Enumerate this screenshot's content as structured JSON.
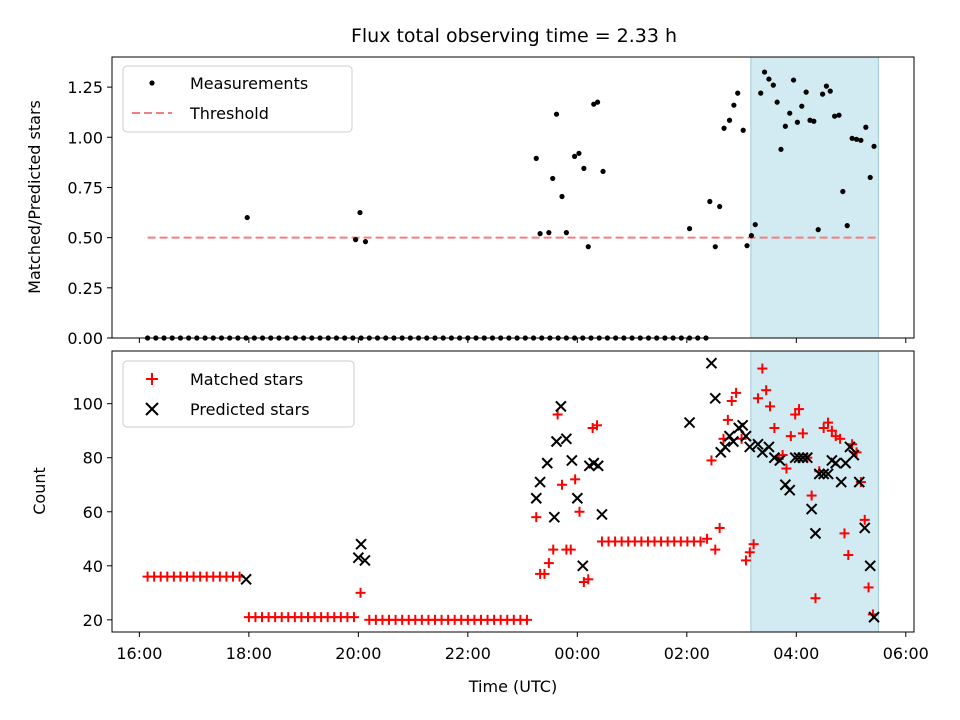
{
  "title": "Flux total observing time = 2.33 h",
  "xlabel": "Time (UTC)",
  "x_tick_labels": [
    "16:00",
    "18:00",
    "20:00",
    "22:00",
    "00:00",
    "02:00",
    "04:00",
    "06:00"
  ],
  "colors": {
    "measure": "#000000",
    "threshold": "#f08080",
    "matched": "#ff0000",
    "predicted": "#000000",
    "span": "#add8e6"
  },
  "chart_data": [
    {
      "type": "scatter",
      "ylabel": "Matched/Predicted stars",
      "x_unit": "hours since 16:00 UTC",
      "xlim": [
        -0.5,
        14.15
      ],
      "ylim": [
        0,
        1.4
      ],
      "y_tick_labels": [
        "0.00",
        "0.25",
        "0.50",
        "0.75",
        "1.00",
        "1.25"
      ],
      "highlight_span": [
        11.17,
        13.5
      ],
      "legend": {
        "placement": "upper-left",
        "measurements": "Measurements",
        "threshold": "Threshold"
      },
      "threshold": {
        "y": 0.5,
        "x": [
          0.15,
          13.5
        ]
      },
      "measurements": [
        [
          0.15,
          0
        ],
        [
          0.3,
          0
        ],
        [
          0.45,
          0
        ],
        [
          0.6,
          0
        ],
        [
          0.75,
          0
        ],
        [
          0.9,
          0
        ],
        [
          1.05,
          0
        ],
        [
          1.2,
          0
        ],
        [
          1.35,
          0
        ],
        [
          1.5,
          0
        ],
        [
          1.65,
          0
        ],
        [
          1.8,
          0
        ],
        [
          1.95,
          0
        ],
        [
          2.1,
          0
        ],
        [
          2.25,
          0
        ],
        [
          2.4,
          0
        ],
        [
          2.55,
          0
        ],
        [
          2.7,
          0
        ],
        [
          2.85,
          0
        ],
        [
          3.0,
          0
        ],
        [
          3.15,
          0
        ],
        [
          3.3,
          0
        ],
        [
          3.45,
          0
        ],
        [
          3.6,
          0
        ],
        [
          3.75,
          0
        ],
        [
          3.9,
          0
        ],
        [
          4.05,
          0
        ],
        [
          4.2,
          0
        ],
        [
          4.35,
          0
        ],
        [
          4.5,
          0
        ],
        [
          4.65,
          0
        ],
        [
          4.8,
          0
        ],
        [
          4.95,
          0
        ],
        [
          5.1,
          0
        ],
        [
          5.25,
          0
        ],
        [
          5.4,
          0
        ],
        [
          5.55,
          0
        ],
        [
          5.7,
          0
        ],
        [
          5.85,
          0
        ],
        [
          6.0,
          0
        ],
        [
          6.15,
          0
        ],
        [
          6.3,
          0
        ],
        [
          6.45,
          0
        ],
        [
          6.6,
          0
        ],
        [
          6.75,
          0
        ],
        [
          6.9,
          0
        ],
        [
          7.05,
          0
        ],
        [
          7.2,
          0
        ],
        [
          7.35,
          0
        ],
        [
          7.5,
          0
        ],
        [
          7.65,
          0
        ],
        [
          7.8,
          0
        ],
        [
          7.95,
          0
        ],
        [
          8.1,
          0
        ],
        [
          8.25,
          0
        ],
        [
          8.4,
          0
        ],
        [
          8.55,
          0
        ],
        [
          8.7,
          0
        ],
        [
          8.85,
          0
        ],
        [
          9.0,
          0
        ],
        [
          9.15,
          0
        ],
        [
          9.3,
          0
        ],
        [
          9.45,
          0
        ],
        [
          9.6,
          0
        ],
        [
          9.75,
          0
        ],
        [
          9.9,
          0
        ],
        [
          10.05,
          0
        ],
        [
          10.2,
          0
        ],
        [
          10.35,
          0
        ],
        [
          1.97,
          0.6
        ],
        [
          3.95,
          0.49
        ],
        [
          4.03,
          0.625
        ],
        [
          4.13,
          0.48
        ],
        [
          7.25,
          0.895
        ],
        [
          7.32,
          0.52
        ],
        [
          7.48,
          0.525
        ],
        [
          7.55,
          0.795
        ],
        [
          7.62,
          1.115
        ],
        [
          7.72,
          0.705
        ],
        [
          7.8,
          0.525
        ],
        [
          7.95,
          0.905
        ],
        [
          8.03,
          0.92
        ],
        [
          8.12,
          0.845
        ],
        [
          8.2,
          0.455
        ],
        [
          8.3,
          1.165
        ],
        [
          8.37,
          1.175
        ],
        [
          8.47,
          0.83
        ],
        [
          10.05,
          0.545
        ],
        [
          10.42,
          0.68
        ],
        [
          10.52,
          0.455
        ],
        [
          10.6,
          0.655
        ],
        [
          10.68,
          1.045
        ],
        [
          10.78,
          1.085
        ],
        [
          10.86,
          1.16
        ],
        [
          10.93,
          1.22
        ],
        [
          11.03,
          1.035
        ],
        [
          11.1,
          0.46
        ],
        [
          11.18,
          0.51
        ],
        [
          11.25,
          0.565
        ],
        [
          11.35,
          1.22
        ],
        [
          11.42,
          1.325
        ],
        [
          11.5,
          1.29
        ],
        [
          11.58,
          1.26
        ],
        [
          11.65,
          1.175
        ],
        [
          11.72,
          0.94
        ],
        [
          11.8,
          1.055
        ],
        [
          11.88,
          1.12
        ],
        [
          11.95,
          1.285
        ],
        [
          12.02,
          1.075
        ],
        [
          12.1,
          1.155
        ],
        [
          12.18,
          1.225
        ],
        [
          12.25,
          1.085
        ],
        [
          12.32,
          1.08
        ],
        [
          12.4,
          0.54
        ],
        [
          12.48,
          1.215
        ],
        [
          12.55,
          1.255
        ],
        [
          12.62,
          1.23
        ],
        [
          12.7,
          1.105
        ],
        [
          12.78,
          1.11
        ],
        [
          12.85,
          0.73
        ],
        [
          12.93,
          0.56
        ],
        [
          13.02,
          0.995
        ],
        [
          13.1,
          0.99
        ],
        [
          13.18,
          0.985
        ],
        [
          13.27,
          1.05
        ],
        [
          13.35,
          0.8
        ],
        [
          13.42,
          0.955
        ]
      ]
    },
    {
      "type": "scatter",
      "ylabel": "Count",
      "x_unit": "hours since 16:00 UTC",
      "xlim": [
        -0.5,
        14.15
      ],
      "ylim": [
        15.5,
        119.5
      ],
      "y_tick_labels": [
        "20",
        "40",
        "60",
        "80",
        "100"
      ],
      "highlight_span": [
        11.17,
        13.5
      ],
      "legend": {
        "placement": "upper-left",
        "matched": "Matched stars",
        "predicted": "Predicted stars"
      },
      "matched_stars": [
        [
          0.15,
          36
        ],
        [
          0.27,
          36
        ],
        [
          0.39,
          36
        ],
        [
          0.51,
          36
        ],
        [
          0.63,
          36
        ],
        [
          0.75,
          36
        ],
        [
          0.87,
          36
        ],
        [
          0.99,
          36
        ],
        [
          1.11,
          36
        ],
        [
          1.23,
          36
        ],
        [
          1.35,
          36
        ],
        [
          1.47,
          36
        ],
        [
          1.59,
          36
        ],
        [
          1.71,
          36
        ],
        [
          1.83,
          36
        ],
        [
          2.0,
          21
        ],
        [
          2.12,
          21
        ],
        [
          2.24,
          21
        ],
        [
          2.36,
          21
        ],
        [
          2.48,
          21
        ],
        [
          2.6,
          21
        ],
        [
          2.72,
          21
        ],
        [
          2.84,
          21
        ],
        [
          2.96,
          21
        ],
        [
          3.08,
          21
        ],
        [
          3.2,
          21
        ],
        [
          3.32,
          21
        ],
        [
          3.44,
          21
        ],
        [
          3.56,
          21
        ],
        [
          3.68,
          21
        ],
        [
          3.8,
          21
        ],
        [
          3.92,
          21
        ],
        [
          4.04,
          30
        ],
        [
          4.2,
          20
        ],
        [
          4.32,
          20
        ],
        [
          4.44,
          20
        ],
        [
          4.56,
          20
        ],
        [
          4.68,
          20
        ],
        [
          4.8,
          20
        ],
        [
          4.92,
          20
        ],
        [
          5.04,
          20
        ],
        [
          5.16,
          20
        ],
        [
          5.28,
          20
        ],
        [
          5.4,
          20
        ],
        [
          5.52,
          20
        ],
        [
          5.64,
          20
        ],
        [
          5.76,
          20
        ],
        [
          5.88,
          20
        ],
        [
          6.0,
          20
        ],
        [
          6.12,
          20
        ],
        [
          6.24,
          20
        ],
        [
          6.36,
          20
        ],
        [
          6.48,
          20
        ],
        [
          6.6,
          20
        ],
        [
          6.72,
          20
        ],
        [
          6.84,
          20
        ],
        [
          6.96,
          20
        ],
        [
          7.08,
          20
        ],
        [
          7.25,
          58
        ],
        [
          7.32,
          37
        ],
        [
          7.4,
          37
        ],
        [
          7.48,
          41
        ],
        [
          7.56,
          46
        ],
        [
          7.64,
          96
        ],
        [
          7.72,
          70
        ],
        [
          7.8,
          46
        ],
        [
          7.88,
          46
        ],
        [
          7.96,
          72
        ],
        [
          8.04,
          60
        ],
        [
          8.12,
          34
        ],
        [
          8.2,
          35
        ],
        [
          8.28,
          91
        ],
        [
          8.36,
          92
        ],
        [
          8.45,
          49
        ],
        [
          8.57,
          49
        ],
        [
          8.69,
          49
        ],
        [
          8.81,
          49
        ],
        [
          8.93,
          49
        ],
        [
          9.05,
          49
        ],
        [
          9.17,
          49
        ],
        [
          9.29,
          49
        ],
        [
          9.41,
          49
        ],
        [
          9.53,
          49
        ],
        [
          9.65,
          49
        ],
        [
          9.77,
          49
        ],
        [
          9.89,
          49
        ],
        [
          10.01,
          49
        ],
        [
          10.13,
          49
        ],
        [
          10.25,
          49
        ],
        [
          10.37,
          50
        ],
        [
          10.45,
          79
        ],
        [
          10.52,
          46
        ],
        [
          10.6,
          54
        ],
        [
          10.67,
          87
        ],
        [
          10.75,
          94
        ],
        [
          10.82,
          101
        ],
        [
          10.9,
          104
        ],
        [
          11.0,
          87
        ],
        [
          11.08,
          42
        ],
        [
          11.15,
          45
        ],
        [
          11.22,
          48
        ],
        [
          11.3,
          102
        ],
        [
          11.38,
          113
        ],
        [
          11.45,
          105
        ],
        [
          11.52,
          99
        ],
        [
          11.6,
          91
        ],
        [
          11.68,
          80
        ],
        [
          11.75,
          81
        ],
        [
          11.82,
          76
        ],
        [
          11.9,
          88
        ],
        [
          11.98,
          96
        ],
        [
          12.05,
          98
        ],
        [
          12.12,
          89
        ],
        [
          12.2,
          80
        ],
        [
          12.28,
          66
        ],
        [
          12.35,
          28
        ],
        [
          12.42,
          75
        ],
        [
          12.5,
          91
        ],
        [
          12.58,
          93
        ],
        [
          12.65,
          90
        ],
        [
          12.72,
          88
        ],
        [
          12.8,
          87
        ],
        [
          12.88,
          52
        ],
        [
          12.95,
          44
        ],
        [
          13.02,
          85
        ],
        [
          13.1,
          82
        ],
        [
          13.18,
          71
        ],
        [
          13.25,
          57
        ],
        [
          13.32,
          32
        ],
        [
          13.4,
          22
        ]
      ],
      "predicted_stars": [
        [
          1.95,
          35
        ],
        [
          4.0,
          43
        ],
        [
          4.05,
          48
        ],
        [
          4.12,
          42
        ],
        [
          7.25,
          65
        ],
        [
          7.32,
          71
        ],
        [
          7.45,
          78
        ],
        [
          7.58,
          58
        ],
        [
          7.62,
          86
        ],
        [
          7.7,
          99
        ],
        [
          7.8,
          87
        ],
        [
          7.9,
          79
        ],
        [
          8.0,
          65
        ],
        [
          8.1,
          40
        ],
        [
          8.22,
          77
        ],
        [
          8.3,
          78
        ],
        [
          8.38,
          77
        ],
        [
          8.45,
          59
        ],
        [
          10.05,
          93
        ],
        [
          10.45,
          115
        ],
        [
          10.52,
          102
        ],
        [
          10.62,
          82
        ],
        [
          10.7,
          84
        ],
        [
          10.78,
          88
        ],
        [
          10.85,
          86
        ],
        [
          10.95,
          91
        ],
        [
          11.02,
          92
        ],
        [
          11.08,
          88
        ],
        [
          11.15,
          84
        ],
        [
          11.3,
          85
        ],
        [
          11.38,
          82
        ],
        [
          11.5,
          84
        ],
        [
          11.6,
          80
        ],
        [
          11.7,
          79
        ],
        [
          11.8,
          70
        ],
        [
          11.88,
          68
        ],
        [
          11.98,
          80
        ],
        [
          12.05,
          80
        ],
        [
          12.12,
          80
        ],
        [
          12.2,
          80
        ],
        [
          12.28,
          61
        ],
        [
          12.35,
          52
        ],
        [
          12.42,
          74
        ],
        [
          12.5,
          74
        ],
        [
          12.58,
          74
        ],
        [
          12.65,
          79
        ],
        [
          12.72,
          78
        ],
        [
          12.82,
          71
        ],
        [
          12.9,
          78
        ],
        [
          12.98,
          84
        ],
        [
          13.05,
          81
        ],
        [
          13.15,
          71
        ],
        [
          13.25,
          54
        ],
        [
          13.35,
          40
        ],
        [
          13.42,
          21
        ]
      ]
    }
  ]
}
